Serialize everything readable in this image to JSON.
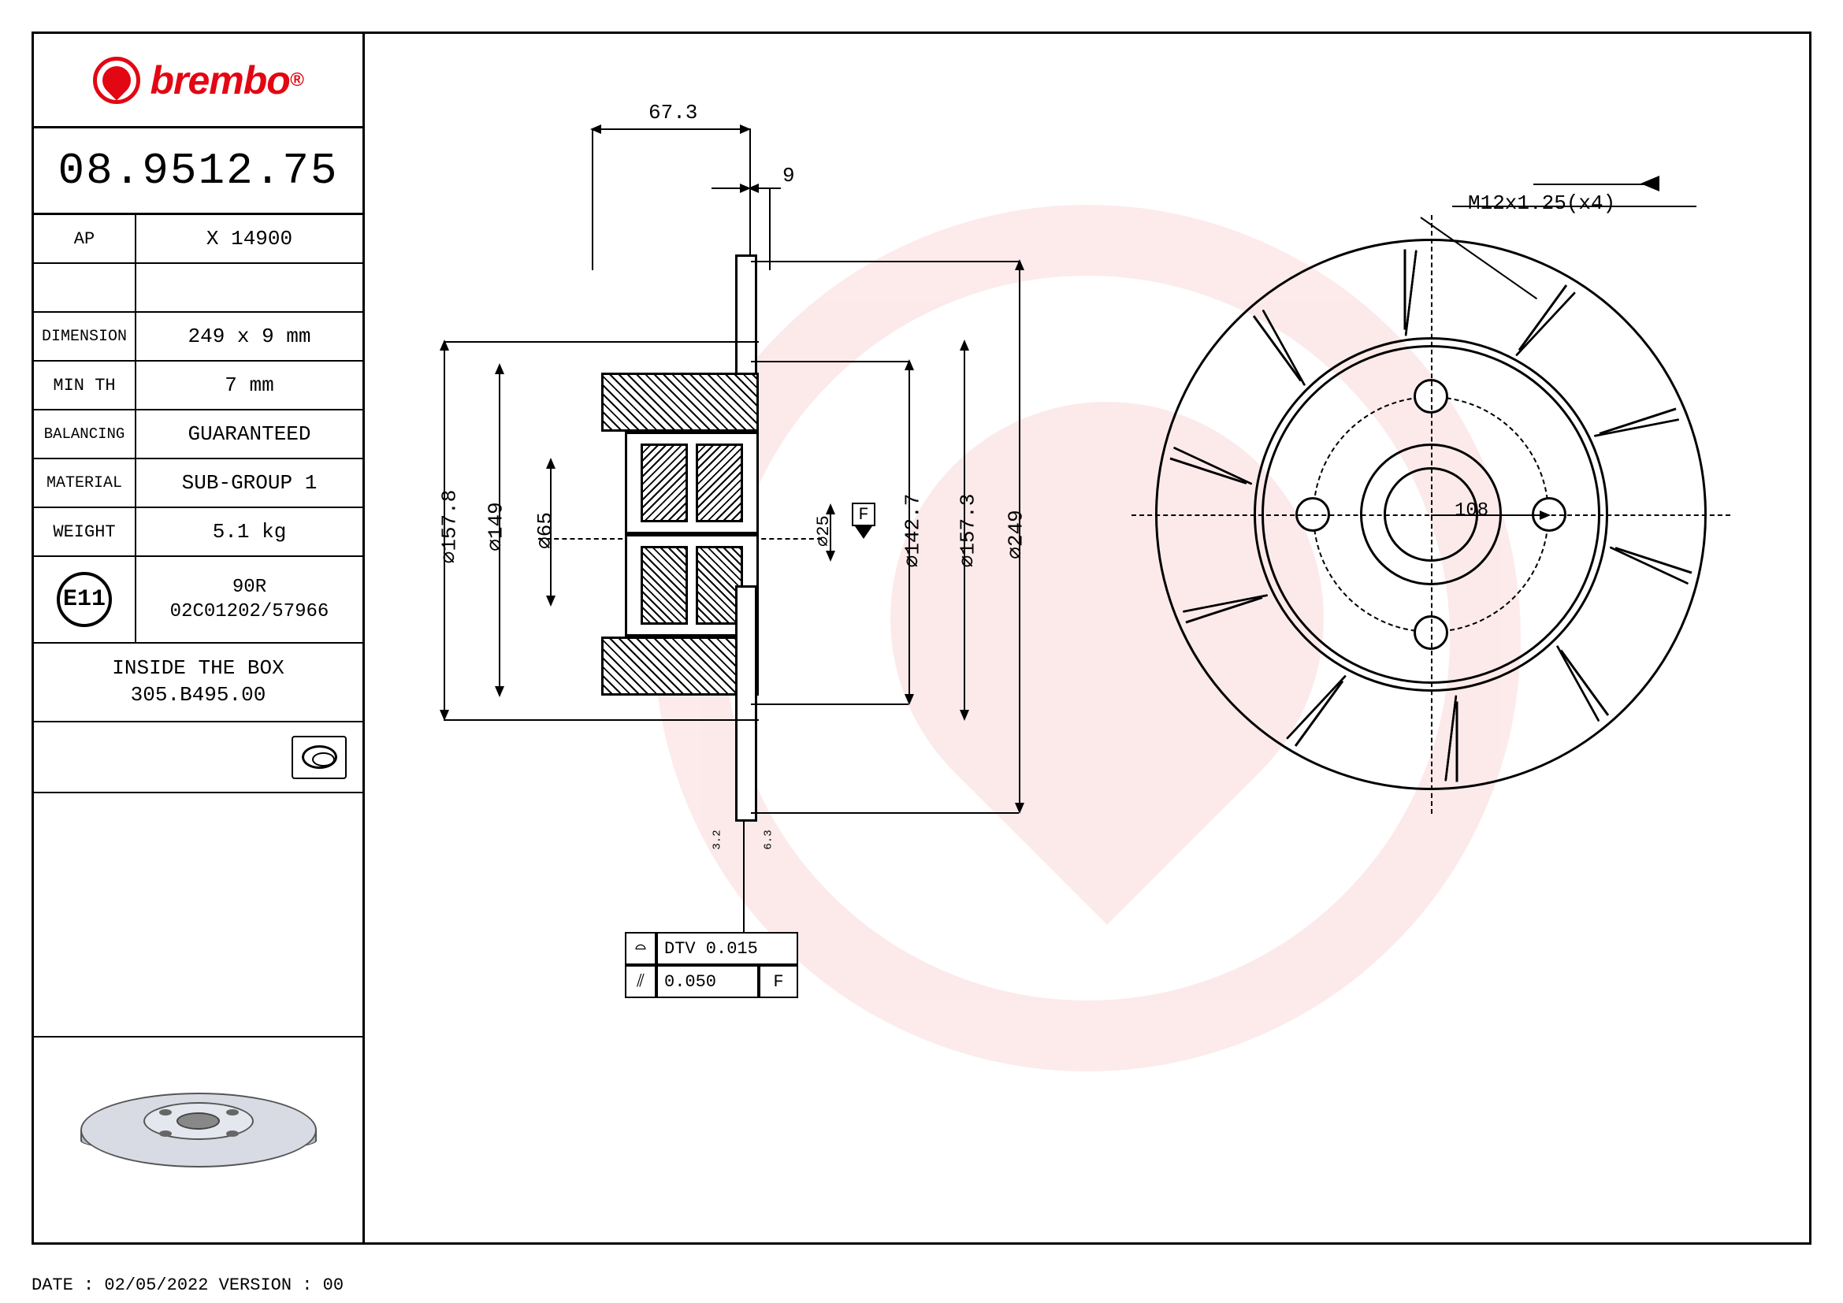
{
  "brand": "brembo",
  "part_number": "08.9512.75",
  "specs": [
    {
      "label": "AP",
      "value": "X 14900"
    },
    {
      "label": "DIMENSION",
      "value": "249 x 9 mm"
    },
    {
      "label": "MIN TH",
      "value": "7 mm"
    },
    {
      "label": "BALANCING",
      "value": "GUARANTEED"
    },
    {
      "label": "MATERIAL",
      "value": "SUB-GROUP 1"
    },
    {
      "label": "WEIGHT",
      "value": "5.1 kg"
    }
  ],
  "cert_mark": "E11",
  "cert_line1": "90R",
  "cert_line2": "02C01202/57966",
  "box_line1": "INSIDE THE BOX",
  "box_line2": "305.B495.00",
  "dimensions": {
    "width_top": "67.3",
    "thickness": "9",
    "d1": "∅157.8",
    "d2": "∅149",
    "d3": "∅65",
    "d4": "∅25",
    "d5": "∅142.7",
    "d6": "∅157.3",
    "d7": "∅249",
    "pcd": "108",
    "thread": "M12x1.25(x4)",
    "datum": "F",
    "surf1": "3.2",
    "surf2": "6.3",
    "tol1": "DTV 0.015",
    "tol2": "0.050",
    "tol2_ref": "F",
    "tol_flat": "⌖"
  },
  "footer_date": "DATE : 02/05/2022 VERSION : 00",
  "colors": {
    "brand_red": "#e30613",
    "line": "#000000",
    "disc_light": "#d8dbe3",
    "disc_mid": "#b8bcc8"
  }
}
